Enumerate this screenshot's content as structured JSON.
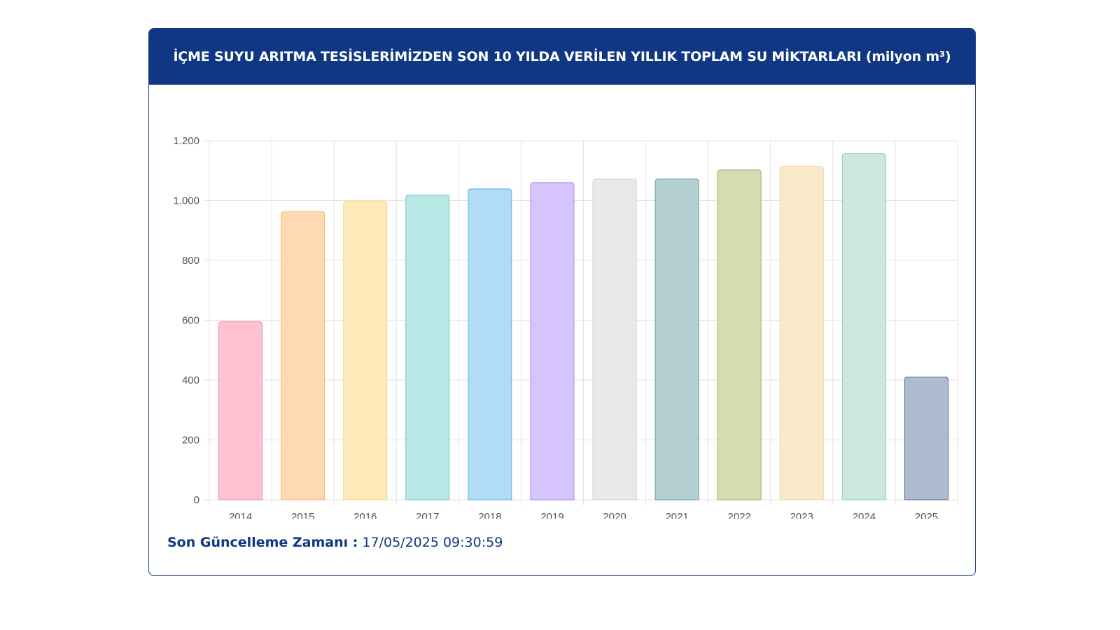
{
  "header": {
    "title": "İÇME SUYU ARITMA TESİSLERİMİZDEN SON 10 YILDA VERİLEN YILLIK TOPLAM SU MİKTARLARI (milyon m³)"
  },
  "footer": {
    "label": "Son Güncelleme Zamanı :",
    "value": "17/05/2025 09:30:59"
  },
  "chart_data": {
    "type": "bar",
    "title": "İÇME SUYU ARITMA TESİSLERİMİZDEN SON 10 YILDA VERİLEN YILLIK TOPLAM SU MİKTARLARI (milyon m³)",
    "categories": [
      "2014",
      "2015",
      "2016",
      "2017",
      "2018",
      "2019",
      "2020",
      "2021",
      "2022",
      "2023",
      "2024",
      "2025"
    ],
    "values": [
      595,
      963,
      998,
      1018,
      1039,
      1060,
      1072,
      1072,
      1102,
      1115,
      1157,
      410
    ],
    "colors": [
      "#ffc2d0",
      "#ffd9b0",
      "#ffe9b8",
      "#b9e7e6",
      "#b0dcf7",
      "#d6c4fd",
      "#e9e9ec",
      "#b3cfd2",
      "#d6dbb2",
      "#f8eacb",
      "#cde7dd",
      "#adbccf"
    ],
    "borders": [
      "#f08ca6",
      "#f5b27a",
      "#f5d585",
      "#6ccac8",
      "#5eb3e5",
      "#a787f0",
      "#cfcfd5",
      "#6a9ba2",
      "#a7ad5f",
      "#eed79c",
      "#8fcdb5",
      "#56698c"
    ],
    "ylim": [
      0,
      1200
    ],
    "yticks": [
      0,
      200,
      400,
      600,
      800,
      1000,
      1200
    ],
    "ytick_labels": [
      "0",
      "200",
      "400",
      "600",
      "800",
      "1.000",
      "1.200"
    ],
    "grid": true,
    "legend": "none"
  }
}
